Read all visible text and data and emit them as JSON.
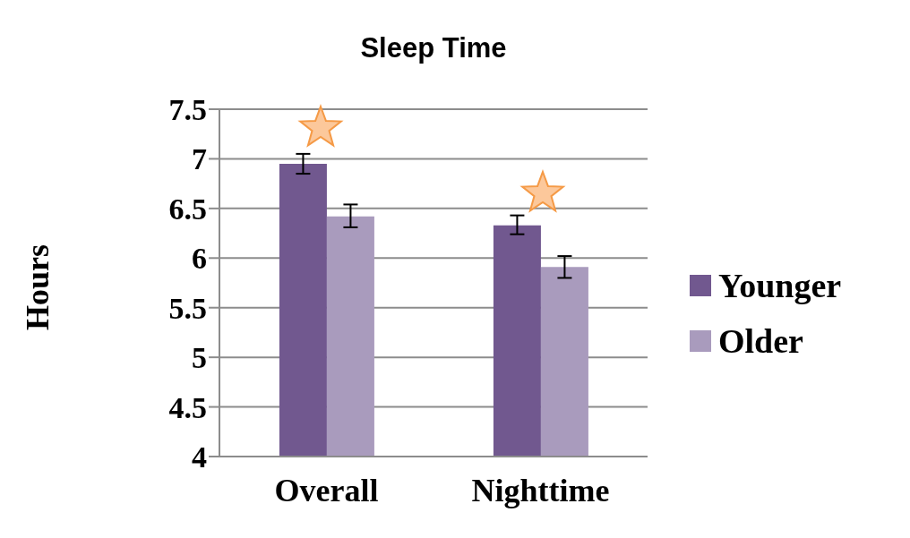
{
  "chart_data": {
    "type": "bar",
    "title": "Sleep Time",
    "ylabel": "Hours",
    "categories": [
      "Overall",
      "Nighttime"
    ],
    "series": [
      {
        "name": "Younger",
        "color": "#71588f",
        "values": [
          6.95,
          6.33
        ],
        "errors": [
          [
            6.85,
            7.05
          ],
          [
            6.24,
            6.43
          ]
        ]
      },
      {
        "name": "Older",
        "color": "#a99bbd",
        "values": [
          6.42,
          5.91
        ],
        "errors": [
          [
            6.31,
            6.54
          ],
          [
            5.8,
            6.02
          ]
        ]
      }
    ],
    "ylim": [
      4,
      7.5
    ],
    "yticks": [
      4,
      4.5,
      5,
      5.5,
      6,
      6.5,
      7,
      7.5
    ],
    "grid": "y",
    "legend": "right"
  }
}
